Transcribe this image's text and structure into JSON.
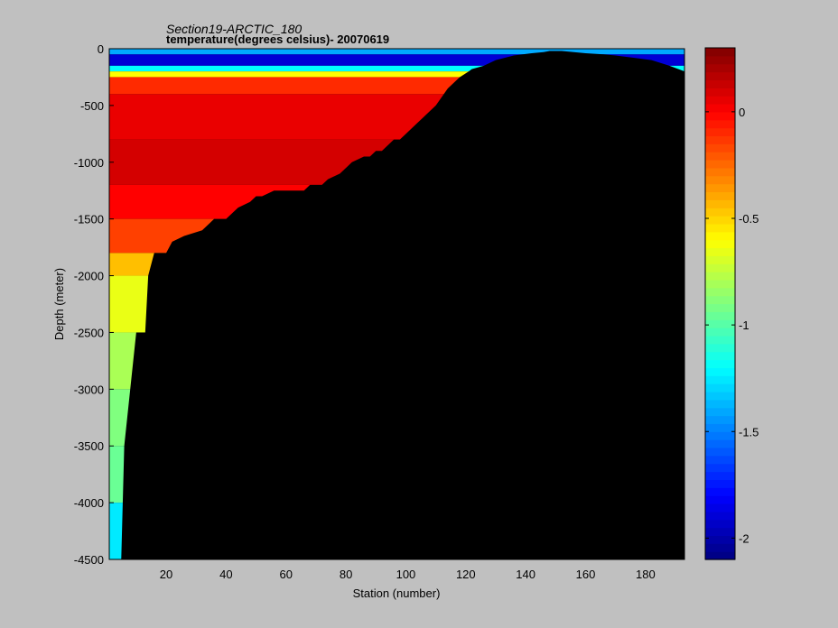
{
  "chart_data": {
    "type": "heatmap",
    "title": "Section19-ARCTIC_180",
    "subtitle": "temperature(degrees  celsius)- 20070619",
    "xlabel": "Station (number)",
    "ylabel": "Depth (meter)",
    "xlim": [
      1,
      193
    ],
    "ylim": [
      -4500,
      0
    ],
    "x_ticks": [
      20,
      40,
      60,
      80,
      100,
      120,
      140,
      160,
      180
    ],
    "y_ticks": [
      0,
      -500,
      -1000,
      -1500,
      -2000,
      -2500,
      -3000,
      -3500,
      -4000,
      -4500
    ],
    "colorbar": {
      "range": [
        -2.1,
        0.3
      ],
      "ticks": [
        0,
        -0.5,
        -1,
        -1.5,
        -2
      ],
      "colormap": "jet"
    },
    "background_color": "#000000",
    "bottom_depth_profile": {
      "stations": [
        1,
        5,
        6,
        8,
        10,
        13,
        14,
        16,
        20,
        22,
        26,
        32,
        34,
        36,
        40,
        42,
        44,
        48,
        50,
        52,
        56,
        60,
        62,
        64,
        66,
        68,
        70,
        72,
        74,
        78,
        80,
        82,
        86,
        88,
        90,
        92,
        96,
        98,
        100,
        104,
        106,
        110,
        114,
        118,
        121,
        122,
        126,
        130,
        136,
        142,
        146,
        148,
        152,
        156,
        160,
        166,
        170,
        176,
        182,
        188,
        193
      ],
      "depth": [
        -4500,
        -4500,
        -3500,
        -3000,
        -2500,
        -2500,
        -2000,
        -1800,
        -1800,
        -1700,
        -1650,
        -1600,
        -1550,
        -1500,
        -1500,
        -1450,
        -1400,
        -1350,
        -1300,
        -1300,
        -1250,
        -1250,
        -1250,
        -1250,
        -1250,
        -1200,
        -1200,
        -1200,
        -1150,
        -1100,
        -1050,
        -1000,
        -950,
        -950,
        -900,
        -900,
        -800,
        -800,
        -750,
        -650,
        -600,
        -500,
        -350,
        -250,
        -200,
        -180,
        -150,
        -100,
        -60,
        -40,
        -30,
        -20,
        -20,
        -30,
        -40,
        -50,
        -60,
        -80,
        -100,
        -150,
        -200
      ]
    },
    "water_layers": [
      {
        "depth_top": 0,
        "depth_bottom": -50,
        "temperature": -1.4
      },
      {
        "depth_top": -50,
        "depth_bottom": -150,
        "temperature": -1.9
      },
      {
        "depth_top": -150,
        "depth_bottom": -200,
        "temperature": -1.2
      },
      {
        "depth_top": -200,
        "depth_bottom": -250,
        "temperature": -0.6
      },
      {
        "depth_top": -250,
        "depth_bottom": -400,
        "temperature": -0.1
      },
      {
        "depth_top": -400,
        "depth_bottom": -800,
        "temperature": 0.05
      },
      {
        "depth_top": -800,
        "depth_bottom": -1200,
        "temperature": 0.1
      },
      {
        "depth_top": -1200,
        "depth_bottom": -1500,
        "temperature": 0.0
      },
      {
        "depth_top": -1500,
        "depth_bottom": -1800,
        "temperature": -0.15
      },
      {
        "depth_top": -1800,
        "depth_bottom": -2000,
        "temperature": -0.45
      },
      {
        "depth_top": -2000,
        "depth_bottom": -2500,
        "temperature": -0.65
      },
      {
        "depth_top": -2500,
        "depth_bottom": -3000,
        "temperature": -0.8
      },
      {
        "depth_top": -3000,
        "depth_bottom": -3500,
        "temperature": -0.9
      },
      {
        "depth_top": -3500,
        "depth_bottom": -4000,
        "temperature": -0.95
      },
      {
        "depth_top": -4000,
        "depth_bottom": -4500,
        "temperature": -1.25
      }
    ]
  }
}
